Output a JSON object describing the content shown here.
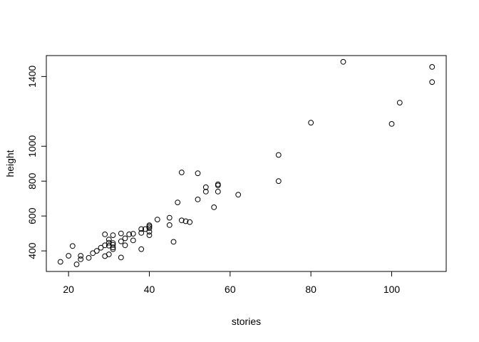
{
  "chart_data": {
    "type": "scatter",
    "title": "",
    "xlabel": "stories",
    "ylabel": "height",
    "xlim": [
      14.5,
      113.5
    ],
    "ylim": [
      282,
      1520
    ],
    "x_ticks": [
      20,
      40,
      60,
      80,
      100
    ],
    "y_ticks": [
      400,
      600,
      800,
      1000,
      1400
    ],
    "grid": false,
    "marker": "open-circle",
    "points": [
      [
        18,
        337
      ],
      [
        20,
        372
      ],
      [
        21,
        428
      ],
      [
        22,
        323
      ],
      [
        23,
        352
      ],
      [
        23,
        372
      ],
      [
        25,
        360
      ],
      [
        26,
        387
      ],
      [
        27,
        400
      ],
      [
        28,
        418
      ],
      [
        29,
        370
      ],
      [
        29,
        432
      ],
      [
        29,
        495
      ],
      [
        30,
        380
      ],
      [
        30,
        430
      ],
      [
        30,
        447
      ],
      [
        30,
        465
      ],
      [
        31,
        410
      ],
      [
        31,
        420
      ],
      [
        31,
        435
      ],
      [
        31,
        445
      ],
      [
        31,
        490
      ],
      [
        33,
        362
      ],
      [
        33,
        455
      ],
      [
        33,
        500
      ],
      [
        34,
        432
      ],
      [
        34,
        472
      ],
      [
        35,
        495
      ],
      [
        36,
        460
      ],
      [
        36,
        498
      ],
      [
        38,
        410
      ],
      [
        38,
        503
      ],
      [
        38,
        525
      ],
      [
        39,
        525
      ],
      [
        40,
        490
      ],
      [
        40,
        510
      ],
      [
        40,
        530
      ],
      [
        40,
        540
      ],
      [
        40,
        547
      ],
      [
        42,
        580
      ],
      [
        45,
        548
      ],
      [
        45,
        590
      ],
      [
        46,
        452
      ],
      [
        47,
        678
      ],
      [
        48,
        575
      ],
      [
        48,
        850
      ],
      [
        49,
        570
      ],
      [
        50,
        565
      ],
      [
        52,
        695
      ],
      [
        52,
        845
      ],
      [
        54,
        740
      ],
      [
        54,
        765
      ],
      [
        56,
        650
      ],
      [
        57,
        740
      ],
      [
        57,
        775
      ],
      [
        57,
        782
      ],
      [
        62,
        722
      ],
      [
        72,
        800
      ],
      [
        72,
        950
      ],
      [
        80,
        1135
      ],
      [
        88,
        1484
      ],
      [
        100,
        1128
      ],
      [
        102,
        1250
      ],
      [
        110,
        1368
      ],
      [
        110,
        1455
      ]
    ]
  }
}
